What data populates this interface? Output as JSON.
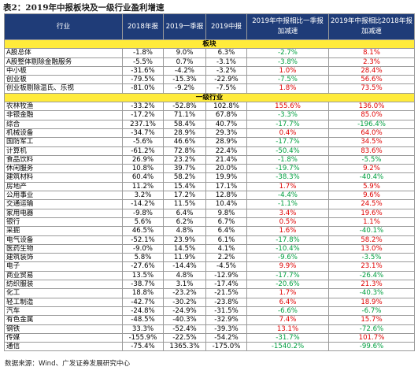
{
  "header": {
    "title": "表2：2019年中报板块及一级行业盈利增速"
  },
  "table": {
    "columns": [
      "行业",
      "2018年报",
      "2019一季报",
      "2019中报",
      "2019年中报相比一季报加减速",
      "2019年中报相比2018年报加减速"
    ],
    "sections": [
      {
        "title": "板块",
        "rows": [
          [
            "A股总体",
            "-1.8%",
            "9.0%",
            "6.3%",
            "-2.7%",
            "8.1%"
          ],
          [
            "A股整体剔除金融服务",
            "-5.5%",
            "0.7%",
            "-3.1%",
            "-3.8%",
            "2.3%"
          ],
          [
            "中小板",
            "-31.6%",
            "-4.2%",
            "-3.2%",
            "1.0%",
            "28.4%"
          ],
          [
            "创业板",
            "-79.5%",
            "-15.3%",
            "-22.9%",
            "-7.5%",
            "56.6%"
          ],
          [
            "创业板剔除温氏、乐视",
            "-81.0%",
            "-9.2%",
            "-7.5%",
            "1.8%",
            "73.5%"
          ]
        ]
      },
      {
        "title": "一级行业",
        "rows": [
          [
            "农林牧渔",
            "-33.2%",
            "-52.8%",
            "102.8%",
            "155.6%",
            "136.0%"
          ],
          [
            "非银金融",
            "-17.2%",
            "71.1%",
            "67.8%",
            "-3.3%",
            "85.0%"
          ],
          [
            "综合",
            "237.1%",
            "58.4%",
            "40.7%",
            "-17.7%",
            "-196.4%"
          ],
          [
            "机械设备",
            "-34.7%",
            "28.9%",
            "29.3%",
            "0.4%",
            "64.0%"
          ],
          [
            "国防军工",
            "-5.6%",
            "46.6%",
            "28.9%",
            "-17.7%",
            "34.5%"
          ],
          [
            "计算机",
            "-61.2%",
            "72.8%",
            "22.4%",
            "-50.4%",
            "83.6%"
          ],
          [
            "食品饮料",
            "26.9%",
            "23.2%",
            "21.4%",
            "-1.8%",
            "-5.5%"
          ],
          [
            "休闲服务",
            "10.8%",
            "39.7%",
            "20.0%",
            "-19.7%",
            "9.2%"
          ],
          [
            "建筑材料",
            "60.4%",
            "58.2%",
            "19.9%",
            "-38.3%",
            "-40.4%"
          ],
          [
            "房地产",
            "11.2%",
            "15.4%",
            "17.1%",
            "1.7%",
            "5.9%"
          ],
          [
            "公用事业",
            "3.2%",
            "17.2%",
            "12.8%",
            "-4.4%",
            "9.6%"
          ],
          [
            "交通运输",
            "-14.2%",
            "11.5%",
            "10.4%",
            "-1.1%",
            "24.5%"
          ],
          [
            "家用电器",
            "-9.8%",
            "6.4%",
            "9.8%",
            "3.4%",
            "19.6%"
          ],
          [
            "银行",
            "5.6%",
            "6.2%",
            "6.7%",
            "0.5%",
            "1.1%"
          ],
          [
            "采掘",
            "46.5%",
            "4.8%",
            "6.4%",
            "1.6%",
            "-40.1%"
          ],
          [
            "电气设备",
            "-52.1%",
            "23.9%",
            "6.1%",
            "-17.8%",
            "58.2%"
          ],
          [
            "医药生物",
            "-9.0%",
            "14.5%",
            "4.1%",
            "-10.4%",
            "13.0%"
          ],
          [
            "建筑装饰",
            "5.8%",
            "11.9%",
            "2.2%",
            "-9.6%",
            "-3.5%"
          ],
          [
            "电子",
            "-27.6%",
            "-14.4%",
            "-4.5%",
            "9.9%",
            "23.1%"
          ],
          [
            "商业贸易",
            "13.5%",
            "4.8%",
            "-12.9%",
            "-17.7%",
            "-26.4%"
          ],
          [
            "纺织服装",
            "-38.7%",
            "3.1%",
            "-17.4%",
            "-20.6%",
            "21.3%"
          ],
          [
            "化工",
            "18.8%",
            "-23.2%",
            "-21.5%",
            "1.7%",
            "-40.3%"
          ],
          [
            "轻工制造",
            "-42.7%",
            "-30.2%",
            "-23.8%",
            "6.4%",
            "18.9%"
          ],
          [
            "汽车",
            "-24.8%",
            "-24.9%",
            "-31.5%",
            "-6.6%",
            "-6.7%"
          ],
          [
            "有色金属",
            "-48.5%",
            "-40.3%",
            "-32.9%",
            "7.4%",
            "15.7%"
          ],
          [
            "钢铁",
            "33.3%",
            "-52.4%",
            "-39.3%",
            "13.1%",
            "-72.6%"
          ],
          [
            "传媒",
            "-155.9%",
            "-22.5%",
            "-54.2%",
            "-31.7%",
            "101.7%"
          ],
          [
            "通信",
            "-75.4%",
            "1365.3%",
            "-175.0%",
            "-1540.2%",
            "-99.6%"
          ]
        ]
      }
    ]
  },
  "source": "数据来源：Wind、广发证券发展研究中心"
}
